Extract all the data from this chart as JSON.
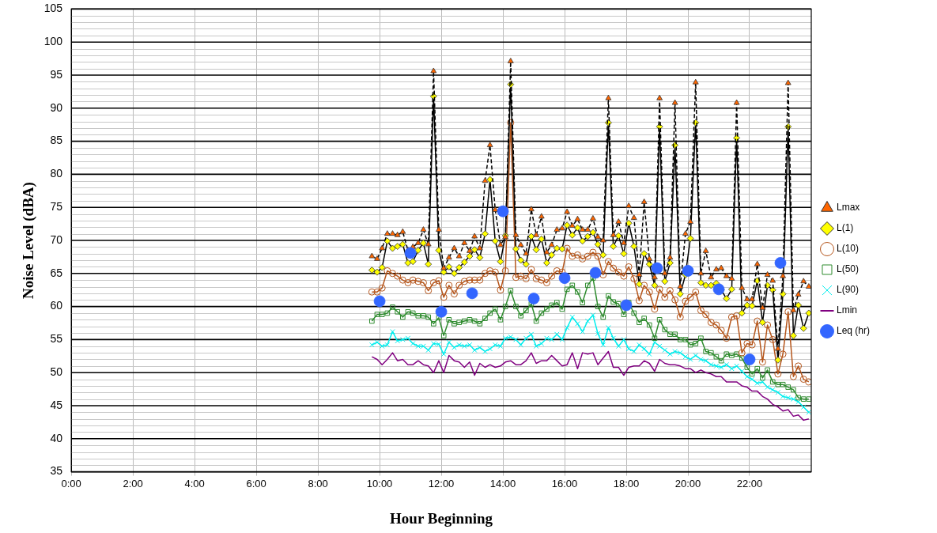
{
  "chart_data": {
    "type": "line",
    "xlabel": "Hour Beginning",
    "ylabel": "Noise Level (dBA)",
    "x": [
      9.75,
      9.92,
      10.08,
      10.25,
      10.42,
      10.58,
      10.75,
      10.92,
      11.08,
      11.25,
      11.42,
      11.58,
      11.75,
      11.92,
      12.08,
      12.25,
      12.42,
      12.58,
      12.75,
      12.92,
      13.08,
      13.25,
      13.42,
      13.58,
      13.75,
      13.92,
      14.08,
      14.25,
      14.42,
      14.58,
      14.75,
      14.92,
      15.08,
      15.25,
      15.42,
      15.58,
      15.75,
      15.92,
      16.08,
      16.25,
      16.42,
      16.58,
      16.75,
      16.92,
      17.08,
      17.25,
      17.42,
      17.58,
      17.75,
      17.92,
      18.08,
      18.25,
      18.42,
      18.58,
      18.75,
      18.92,
      19.08,
      19.25,
      19.42,
      19.58,
      19.75,
      19.92,
      20.08,
      20.25,
      20.42,
      20.58,
      20.75,
      20.92,
      21.08,
      21.25,
      21.42,
      21.58,
      21.75,
      21.92,
      22.08,
      22.25,
      22.42,
      22.58,
      22.75,
      22.92,
      23.08,
      23.25,
      23.42,
      23.58,
      23.75,
      23.92
    ],
    "series": [
      {
        "name": "Lmax",
        "color": "#ff6600",
        "marker": "triangle",
        "line_style": "dashed",
        "values": [
          67.6,
          67.2,
          68.8,
          71.0,
          71.0,
          70.8,
          71.3,
          68.5,
          69.0,
          69.6,
          71.6,
          69.4,
          95.6,
          71.6,
          65.8,
          67.4,
          68.8,
          67.6,
          69.6,
          68.4,
          70.6,
          68.8,
          79.0,
          84.4,
          74.6,
          69.3,
          70.5,
          97.1,
          70.8,
          69.3,
          68.0,
          74.7,
          70.8,
          73.6,
          68.2,
          69.3,
          71.6,
          71.8,
          74.3,
          72.2,
          73.2,
          71.6,
          71.6,
          73.3,
          70.5,
          70.0,
          91.5,
          70.8,
          72.8,
          69.6,
          75.2,
          73.4,
          64.8,
          75.8,
          67.2,
          64.4,
          91.5,
          65.0,
          67.4,
          90.8,
          63.0,
          71.0,
          72.8,
          93.9,
          65.0,
          68.4,
          64.4,
          65.6,
          65.8,
          64.6,
          64.2,
          90.8,
          62.8,
          61.1,
          61.1,
          66.4,
          59.8,
          64.8,
          63.9,
          53.6,
          64.6,
          93.8,
          59.4,
          61.8,
          63.8,
          63.0
        ]
      },
      {
        "name": "L(1)",
        "color": "#ffff00",
        "marker": "diamond",
        "line_style": "solid",
        "values": [
          65.5,
          65.2,
          65.9,
          69.9,
          68.8,
          69.1,
          69.4,
          66.6,
          66.8,
          68.5,
          69.6,
          66.4,
          91.8,
          68.5,
          65.2,
          66.0,
          65.0,
          65.9,
          66.7,
          67.6,
          68.6,
          67.4,
          71.0,
          79.2,
          69.9,
          66.8,
          70.7,
          93.6,
          68.7,
          67.0,
          66.4,
          70.6,
          68.6,
          70.2,
          66.6,
          67.8,
          68.8,
          68.7,
          72.3,
          70.8,
          71.9,
          69.9,
          70.6,
          71.2,
          69.4,
          67.8,
          87.8,
          69.1,
          70.7,
          68.0,
          72.6,
          69.1,
          63.4,
          68.0,
          66.4,
          63.2,
          87.2,
          63.8,
          66.6,
          84.4,
          61.9,
          64.8,
          70.3,
          87.8,
          63.6,
          63.2,
          63.2,
          63.5,
          62.5,
          61.2,
          62.6,
          85.5,
          59.0,
          60.2,
          60.1,
          63.9,
          57.6,
          63.2,
          62.5,
          51.9,
          61.9,
          87.2,
          55.6,
          60.2,
          56.7,
          59.0
        ]
      },
      {
        "name": "L(10)",
        "color": "#b5561c",
        "marker": "circle",
        "line_style": "solid",
        "values": [
          62.2,
          62.2,
          62.8,
          65.4,
          65.0,
          64.6,
          64.0,
          63.6,
          64.0,
          63.8,
          63.6,
          62.4,
          63.6,
          63.9,
          61.4,
          63.2,
          61.9,
          63.2,
          63.8,
          64.0,
          64.0,
          64.0,
          65.0,
          65.4,
          65.2,
          62.5,
          65.4,
          87.8,
          64.4,
          64.6,
          64.2,
          65.6,
          64.2,
          64.0,
          63.6,
          64.6,
          65.4,
          65.2,
          68.8,
          67.6,
          67.8,
          67.2,
          67.6,
          68.2,
          67.6,
          64.8,
          66.8,
          65.8,
          65.2,
          64.6,
          66.0,
          64.2,
          60.9,
          63.2,
          62.2,
          59.6,
          62.6,
          61.4,
          62.4,
          61.0,
          58.4,
          60.8,
          61.4,
          62.2,
          59.4,
          58.8,
          57.6,
          57.2,
          56.4,
          55.2,
          58.4,
          58.6,
          53.0,
          54.4,
          54.2,
          57.8,
          51.6,
          57.2,
          55.0,
          49.8,
          52.8,
          59.2,
          49.4,
          51.0,
          49.0,
          48.6
        ]
      },
      {
        "name": "L(50)",
        "color": "#2e8b2e",
        "marker": "square",
        "line_style": "solid",
        "values": [
          57.8,
          58.8,
          58.8,
          59.0,
          59.9,
          59.2,
          58.4,
          59.2,
          59.0,
          58.6,
          58.6,
          58.4,
          57.4,
          58.3,
          55.6,
          58.0,
          57.4,
          57.6,
          57.8,
          58.0,
          57.8,
          57.4,
          58.2,
          59.0,
          59.6,
          58.0,
          60.0,
          62.4,
          60.0,
          58.6,
          59.4,
          60.4,
          57.8,
          59.0,
          59.6,
          60.2,
          60.6,
          59.6,
          62.6,
          63.2,
          62.2,
          60.6,
          63.2,
          64.3,
          60.0,
          58.4,
          61.6,
          60.7,
          60.4,
          58.8,
          60.6,
          59.0,
          57.6,
          58.2,
          57.2,
          55.2,
          58.0,
          56.5,
          55.8,
          55.8,
          55.0,
          55.0,
          54.2,
          54.4,
          55.2,
          53.2,
          53.0,
          52.4,
          51.8,
          52.8,
          52.6,
          52.8,
          52.2,
          50.8,
          49.8,
          50.6,
          49.2,
          50.4,
          48.6,
          48.2,
          48.2,
          47.8,
          47.4,
          46.2,
          46.0,
          46.0
        ]
      },
      {
        "name": "L(90)",
        "color": "#00eeee",
        "marker": "cross",
        "line_style": "solid",
        "values": [
          54.2,
          54.6,
          54.0,
          54.2,
          56.2,
          54.8,
          55.0,
          55.2,
          54.4,
          54.0,
          54.0,
          53.4,
          54.4,
          54.3,
          52.8,
          54.6,
          53.8,
          54.2,
          54.0,
          54.2,
          53.4,
          53.8,
          53.2,
          53.6,
          54.2,
          54.0,
          55.2,
          55.4,
          55.0,
          54.2,
          55.2,
          55.8,
          54.0,
          54.4,
          55.2,
          55.0,
          55.8,
          55.0,
          56.8,
          58.4,
          57.4,
          56.2,
          57.8,
          58.7,
          55.9,
          54.2,
          56.8,
          55.2,
          54.0,
          55.0,
          53.6,
          53.2,
          54.2,
          53.6,
          52.8,
          54.6,
          54.0,
          53.4,
          52.8,
          53.2,
          53.0,
          52.4,
          52.0,
          52.6,
          52.0,
          51.8,
          51.2,
          51.0,
          50.8,
          51.2,
          50.6,
          51.0,
          50.2,
          49.4,
          49.0,
          48.4,
          48.6,
          47.8,
          47.4,
          47.0,
          46.4,
          46.2,
          46.0,
          45.6,
          44.8,
          44.0
        ]
      },
      {
        "name": "Lmin",
        "color": "#800080",
        "marker": "none",
        "line_style": "solid",
        "values": [
          52.4,
          52.0,
          51.2,
          52.0,
          53.0,
          51.8,
          52.0,
          51.2,
          51.2,
          51.8,
          51.2,
          51.0,
          50.0,
          51.8,
          50.0,
          52.6,
          51.8,
          51.6,
          50.8,
          51.6,
          49.6,
          51.4,
          50.8,
          51.2,
          50.8,
          51.0,
          51.6,
          51.8,
          51.2,
          51.2,
          51.8,
          53.0,
          51.4,
          51.8,
          51.8,
          52.6,
          51.8,
          51.0,
          51.2,
          53.0,
          50.6,
          53.0,
          52.8,
          53.0,
          51.2,
          52.2,
          53.2,
          50.8,
          50.8,
          49.6,
          50.8,
          51.0,
          51.0,
          51.8,
          51.4,
          50.2,
          52.0,
          51.4,
          51.2,
          51.2,
          51.0,
          50.6,
          50.6,
          50.0,
          50.4,
          50.0,
          49.8,
          49.4,
          49.4,
          48.6,
          48.6,
          48.6,
          48.0,
          47.8,
          47.2,
          47.2,
          46.4,
          46.0,
          45.2,
          44.8,
          44.2,
          44.4,
          43.4,
          43.6,
          42.8,
          43.0
        ]
      },
      {
        "name": "Leq (hr)",
        "type": "scatter",
        "color": "#3366ff",
        "marker": "circle",
        "x": [
          10,
          11,
          12,
          13,
          14,
          15,
          16,
          17,
          18,
          19,
          20,
          21,
          22,
          23
        ],
        "values": [
          60.8,
          68.1,
          59.2,
          62.0,
          74.4,
          61.2,
          64.3,
          65.1,
          60.2,
          65.8,
          65.4,
          62.6,
          52.0,
          66.6
        ]
      }
    ],
    "xlim": [
      0,
      24
    ],
    "xticks": [
      {
        "value": 0,
        "label": "0:00"
      },
      {
        "value": 2,
        "label": "2:00"
      },
      {
        "value": 4,
        "label": "4:00"
      },
      {
        "value": 6,
        "label": "6:00"
      },
      {
        "value": 8,
        "label": "8:00"
      },
      {
        "value": 10,
        "label": "10:00"
      },
      {
        "value": 12,
        "label": "12:00"
      },
      {
        "value": 14,
        "label": "14:00"
      },
      {
        "value": 16,
        "label": "16:00"
      },
      {
        "value": 18,
        "label": "18:00"
      },
      {
        "value": 20,
        "label": "20:00"
      },
      {
        "value": 22,
        "label": "22:00"
      }
    ],
    "ylim": [
      35,
      105
    ],
    "yticks": [
      35,
      40,
      45,
      50,
      55,
      60,
      65,
      70,
      75,
      80,
      85,
      90,
      95,
      100,
      105
    ],
    "grid": true,
    "legend": "right"
  }
}
